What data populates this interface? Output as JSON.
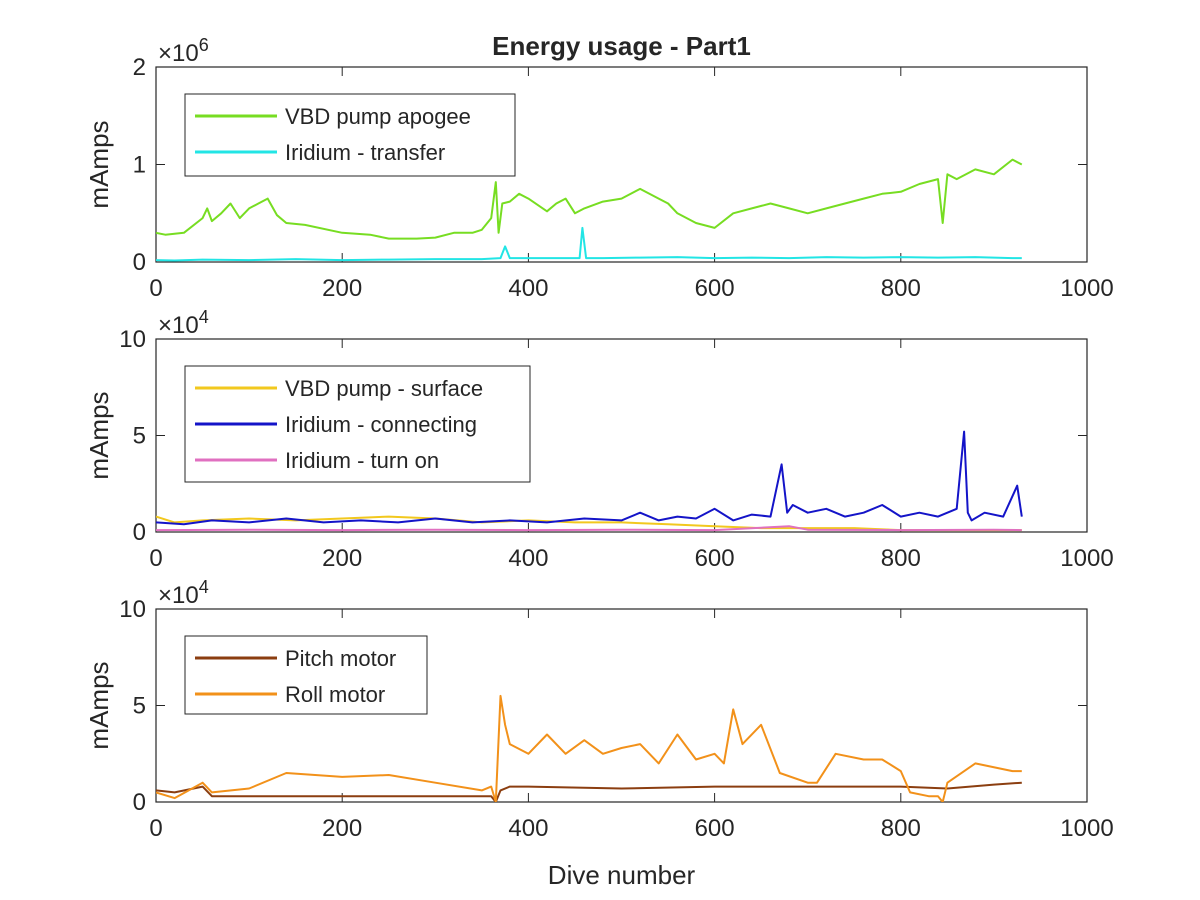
{
  "chart_data": [
    {
      "type": "line",
      "title": "Energy usage - Part1",
      "xlabel": "",
      "ylabel": "mAmps",
      "xlim": [
        0,
        1000
      ],
      "ylim": [
        0,
        2000000
      ],
      "x_ticks": [
        "0",
        "200",
        "400",
        "600",
        "800",
        "1000"
      ],
      "y_ticks": [
        "0",
        "1",
        "2"
      ],
      "y_exponent": {
        "base": "×10",
        "power": "6"
      },
      "legend_position": "top-left",
      "series": [
        {
          "name": "VBD pump apogee",
          "color": "#77dd22",
          "x": [
            0,
            10,
            30,
            50,
            55,
            60,
            70,
            80,
            90,
            100,
            110,
            120,
            130,
            140,
            160,
            200,
            230,
            250,
            280,
            300,
            320,
            340,
            350,
            360,
            365,
            368,
            372,
            380,
            390,
            400,
            420,
            430,
            440,
            450,
            460,
            480,
            500,
            520,
            540,
            550,
            560,
            580,
            600,
            620,
            640,
            660,
            680,
            700,
            720,
            740,
            760,
            780,
            800,
            820,
            840,
            845,
            850,
            860,
            880,
            900,
            920,
            930
          ],
          "y": [
            300000,
            280000,
            300000,
            450000,
            550000,
            420000,
            500000,
            600000,
            450000,
            550000,
            600000,
            650000,
            480000,
            400000,
            380000,
            300000,
            280000,
            240000,
            240000,
            250000,
            300000,
            300000,
            330000,
            450000,
            820000,
            300000,
            600000,
            620000,
            700000,
            650000,
            520000,
            600000,
            650000,
            500000,
            550000,
            620000,
            650000,
            750000,
            650000,
            600000,
            500000,
            400000,
            350000,
            500000,
            550000,
            600000,
            550000,
            500000,
            550000,
            600000,
            650000,
            700000,
            720000,
            800000,
            850000,
            400000,
            900000,
            850000,
            950000,
            900000,
            1050000,
            1000000
          ]
        },
        {
          "name": "Iridium - transfer",
          "color": "#22e5e5",
          "x": [
            0,
            20,
            50,
            100,
            150,
            200,
            250,
            300,
            350,
            370,
            375,
            380,
            400,
            440,
            455,
            458,
            462,
            480,
            520,
            560,
            600,
            640,
            680,
            720,
            760,
            800,
            840,
            880,
            920,
            930
          ],
          "y": [
            20000,
            15000,
            25000,
            20000,
            30000,
            20000,
            25000,
            30000,
            30000,
            40000,
            160000,
            40000,
            40000,
            40000,
            40000,
            350000,
            40000,
            40000,
            45000,
            50000,
            40000,
            45000,
            40000,
            50000,
            45000,
            50000,
            45000,
            50000,
            40000,
            40000
          ]
        }
      ]
    },
    {
      "type": "line",
      "title": "",
      "xlabel": "",
      "ylabel": "mAmps",
      "xlim": [
        0,
        1000
      ],
      "ylim": [
        0,
        100000
      ],
      "x_ticks": [
        "0",
        "200",
        "400",
        "600",
        "800",
        "1000"
      ],
      "y_ticks": [
        "0",
        "5",
        "10"
      ],
      "y_exponent": {
        "base": "×10",
        "power": "4"
      },
      "legend_position": "top-left",
      "series": [
        {
          "name": "VBD pump - surface",
          "color": "#f2c81e",
          "x": [
            0,
            20,
            50,
            100,
            150,
            200,
            250,
            300,
            350,
            400,
            450,
            500,
            550,
            600,
            650,
            700,
            750,
            800,
            850,
            900,
            930
          ],
          "y": [
            8000,
            5000,
            6000,
            7000,
            6000,
            7000,
            8000,
            7000,
            5000,
            6000,
            5000,
            5000,
            4000,
            3000,
            2000,
            2000,
            2000,
            1000,
            1000,
            1000,
            1000
          ]
        },
        {
          "name": "Iridium - connecting",
          "color": "#1414c8",
          "x": [
            0,
            30,
            60,
            100,
            140,
            180,
            220,
            260,
            300,
            340,
            380,
            420,
            460,
            500,
            520,
            540,
            560,
            580,
            600,
            620,
            640,
            660,
            672,
            678,
            684,
            700,
            720,
            740,
            760,
            780,
            800,
            820,
            840,
            860,
            868,
            872,
            876,
            890,
            910,
            925,
            930
          ],
          "y": [
            5000,
            4000,
            6000,
            5000,
            7000,
            5000,
            6000,
            5000,
            7000,
            5000,
            6000,
            5000,
            7000,
            6000,
            10000,
            6000,
            8000,
            7000,
            12000,
            6000,
            9000,
            8000,
            35000,
            10000,
            14000,
            10000,
            12000,
            8000,
            10000,
            14000,
            8000,
            10000,
            8000,
            12000,
            52000,
            10000,
            6000,
            10000,
            8000,
            24000,
            8000
          ]
        },
        {
          "name": "Iridium - turn on",
          "color": "#e070c0",
          "x": [
            0,
            100,
            200,
            300,
            400,
            500,
            600,
            680,
            700,
            800,
            900,
            930
          ],
          "y": [
            1000,
            1200,
            1000,
            1200,
            1000,
            1200,
            1000,
            3000,
            1200,
            1000,
            1200,
            1000
          ]
        }
      ]
    },
    {
      "type": "line",
      "title": "",
      "xlabel": "Dive number",
      "ylabel": "mAmps",
      "xlim": [
        0,
        1000
      ],
      "ylim": [
        0,
        100000
      ],
      "x_ticks": [
        "0",
        "200",
        "400",
        "600",
        "800",
        "1000"
      ],
      "y_ticks": [
        "0",
        "5",
        "10"
      ],
      "y_exponent": {
        "base": "×10",
        "power": "4"
      },
      "legend_position": "top-left",
      "series": [
        {
          "name": "Pitch motor",
          "color": "#8b3e10",
          "x": [
            0,
            20,
            50,
            60,
            100,
            200,
            300,
            360,
            365,
            370,
            380,
            400,
            500,
            600,
            700,
            800,
            850,
            900,
            930
          ],
          "y": [
            6000,
            5000,
            8000,
            3000,
            3000,
            3000,
            3000,
            3000,
            0,
            6000,
            8000,
            8000,
            7000,
            8000,
            8000,
            8000,
            7000,
            9000,
            10000
          ]
        },
        {
          "name": "Roll motor",
          "color": "#f2911a",
          "x": [
            0,
            20,
            50,
            60,
            100,
            140,
            200,
            250,
            300,
            350,
            360,
            365,
            370,
            375,
            380,
            400,
            420,
            440,
            460,
            480,
            500,
            520,
            540,
            560,
            580,
            600,
            610,
            620,
            630,
            650,
            670,
            700,
            710,
            730,
            760,
            780,
            800,
            810,
            830,
            840,
            845,
            850,
            880,
            920,
            930
          ],
          "y": [
            5000,
            2000,
            10000,
            5000,
            7000,
            15000,
            13000,
            14000,
            10000,
            6000,
            8000,
            0,
            55000,
            40000,
            30000,
            25000,
            35000,
            25000,
            32000,
            25000,
            28000,
            30000,
            20000,
            35000,
            22000,
            25000,
            20000,
            48000,
            30000,
            40000,
            15000,
            10000,
            10000,
            25000,
            22000,
            22000,
            16000,
            5000,
            3000,
            3000,
            0,
            10000,
            20000,
            16000,
            16000
          ]
        }
      ]
    }
  ]
}
